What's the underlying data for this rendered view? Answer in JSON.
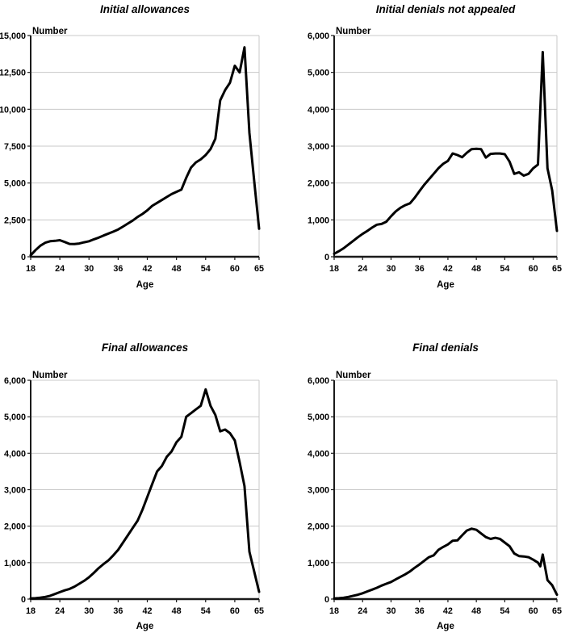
{
  "page": {
    "background": "#ffffff",
    "colors": {
      "line": "#000000",
      "axis": "#1a1a1a",
      "grid": "#c9c9c9",
      "text": "#000000"
    }
  },
  "chart_data": [
    {
      "type": "line",
      "title": "Initial allowances",
      "ylabel": "Number",
      "xlabel": "Age",
      "ylim": [
        0,
        15000
      ],
      "xlim": [
        18,
        65
      ],
      "grid": "horizontal",
      "legend": "none",
      "y_ticks": [
        0,
        2500,
        5000,
        7500,
        10000,
        12500,
        15000
      ],
      "y_tick_labels": [
        "0",
        "2,500",
        "5,000",
        "7,500",
        "10,000",
        "12,500",
        "15,000"
      ],
      "x_ticks": [
        18,
        24,
        30,
        36,
        42,
        48,
        54,
        60,
        65
      ],
      "x_tick_labels": [
        "18",
        "24",
        "30",
        "36",
        "42",
        "48",
        "54",
        "60",
        "65"
      ],
      "x": [
        18,
        19,
        20,
        21,
        22,
        23,
        24,
        25,
        26,
        27,
        28,
        29,
        30,
        31,
        32,
        33,
        34,
        35,
        36,
        37,
        38,
        39,
        40,
        41,
        42,
        43,
        44,
        45,
        46,
        47,
        48,
        49,
        50,
        51,
        52,
        53,
        54,
        55,
        56,
        57,
        58,
        59,
        60,
        61,
        62,
        63,
        64,
        65
      ],
      "values": [
        100,
        450,
        750,
        950,
        1050,
        1080,
        1120,
        1000,
        870,
        860,
        900,
        980,
        1050,
        1180,
        1300,
        1440,
        1570,
        1700,
        1850,
        2050,
        2250,
        2450,
        2700,
        2900,
        3150,
        3450,
        3650,
        3850,
        4050,
        4250,
        4400,
        4550,
        5350,
        6050,
        6400,
        6600,
        6900,
        7300,
        8000,
        10600,
        11300,
        11800,
        12950,
        12500,
        14200,
        8400,
        5100,
        1900
      ]
    },
    {
      "type": "line",
      "title": "Initial denials not appealed",
      "ylabel": "Number",
      "xlabel": "Age",
      "ylim": [
        0,
        6000
      ],
      "xlim": [
        18,
        65
      ],
      "grid": "horizontal",
      "legend": "none",
      "y_ticks": [
        0,
        1000,
        2000,
        3000,
        4000,
        5000,
        6000
      ],
      "y_tick_labels": [
        "0",
        "1,000",
        "2,000",
        "3,000",
        "4,000",
        "5,000",
        "6,000"
      ],
      "x_ticks": [
        18,
        24,
        30,
        36,
        42,
        48,
        54,
        60,
        65
      ],
      "x_tick_labels": [
        "18",
        "24",
        "30",
        "36",
        "42",
        "48",
        "54",
        "60",
        "65"
      ],
      "x": [
        18,
        19,
        20,
        21,
        22,
        23,
        24,
        25,
        26,
        27,
        28,
        29,
        30,
        31,
        32,
        33,
        34,
        35,
        36,
        37,
        38,
        39,
        40,
        41,
        42,
        43,
        44,
        45,
        46,
        47,
        48,
        49,
        50,
        51,
        52,
        53,
        54,
        55,
        56,
        57,
        58,
        59,
        60,
        61,
        62,
        63,
        64,
        65
      ],
      "values": [
        80,
        150,
        230,
        330,
        430,
        530,
        620,
        700,
        790,
        870,
        890,
        950,
        1100,
        1230,
        1330,
        1400,
        1450,
        1600,
        1780,
        1950,
        2100,
        2250,
        2400,
        2520,
        2600,
        2800,
        2760,
        2700,
        2820,
        2920,
        2930,
        2920,
        2690,
        2790,
        2800,
        2800,
        2780,
        2580,
        2250,
        2290,
        2200,
        2250,
        2400,
        2500,
        5550,
        2400,
        1800,
        700
      ]
    },
    {
      "type": "line",
      "title": "Final allowances",
      "ylabel": "Number",
      "xlabel": "Age",
      "ylim": [
        0,
        6000
      ],
      "xlim": [
        18,
        65
      ],
      "grid": "horizontal",
      "legend": "none",
      "y_ticks": [
        0,
        1000,
        2000,
        3000,
        4000,
        5000,
        6000
      ],
      "y_tick_labels": [
        "0",
        "1,000",
        "2,000",
        "3,000",
        "4,000",
        "5,000",
        "6,000"
      ],
      "x_ticks": [
        18,
        24,
        30,
        36,
        42,
        48,
        54,
        60,
        65
      ],
      "x_tick_labels": [
        "18",
        "24",
        "30",
        "36",
        "42",
        "48",
        "54",
        "60",
        "65"
      ],
      "x": [
        18,
        19,
        20,
        21,
        22,
        23,
        24,
        25,
        26,
        27,
        28,
        29,
        30,
        31,
        32,
        33,
        34,
        35,
        36,
        37,
        38,
        39,
        40,
        41,
        42,
        43,
        44,
        45,
        46,
        47,
        48,
        49,
        50,
        51,
        52,
        53,
        54,
        55,
        56,
        57,
        58,
        59,
        60,
        61,
        62,
        63,
        64,
        65
      ],
      "values": [
        20,
        25,
        40,
        60,
        90,
        140,
        190,
        240,
        280,
        340,
        420,
        500,
        600,
        720,
        850,
        960,
        1060,
        1200,
        1350,
        1550,
        1750,
        1950,
        2150,
        2450,
        2800,
        3150,
        3500,
        3650,
        3900,
        4050,
        4300,
        4450,
        5000,
        5100,
        5200,
        5300,
        5750,
        5300,
        5050,
        4600,
        4650,
        4550,
        4350,
        3750,
        3100,
        1300,
        750,
        200
      ]
    },
    {
      "type": "line",
      "title": "Final denials",
      "ylabel": "Number",
      "xlabel": "Age",
      "ylim": [
        0,
        6000
      ],
      "xlim": [
        18,
        65
      ],
      "grid": "horizontal",
      "legend": "none",
      "y_ticks": [
        0,
        1000,
        2000,
        3000,
        4000,
        5000,
        6000
      ],
      "y_tick_labels": [
        "0",
        "1,000",
        "2,000",
        "3,000",
        "4,000",
        "5,000",
        "6,000"
      ],
      "x_ticks": [
        18,
        24,
        30,
        36,
        42,
        48,
        54,
        60,
        65
      ],
      "x_tick_labels": [
        "18",
        "24",
        "30",
        "36",
        "42",
        "48",
        "54",
        "60",
        "65"
      ],
      "x": [
        18,
        19,
        20,
        21,
        22,
        23,
        24,
        25,
        26,
        27,
        28,
        29,
        30,
        31,
        32,
        33,
        34,
        35,
        36,
        37,
        38,
        39,
        40,
        41,
        42,
        43,
        44,
        45,
        46,
        47,
        48,
        49,
        50,
        51,
        52,
        53,
        54,
        55,
        56,
        57,
        58,
        59,
        60,
        61,
        61.5,
        62,
        63,
        64,
        65
      ],
      "values": [
        20,
        25,
        35,
        60,
        90,
        120,
        160,
        210,
        260,
        310,
        370,
        420,
        470,
        540,
        610,
        680,
        760,
        860,
        950,
        1050,
        1150,
        1200,
        1350,
        1430,
        1500,
        1600,
        1610,
        1750,
        1880,
        1930,
        1900,
        1800,
        1700,
        1650,
        1680,
        1650,
        1550,
        1450,
        1250,
        1180,
        1170,
        1150,
        1080,
        1000,
        900,
        1220,
        520,
        380,
        120
      ]
    }
  ]
}
